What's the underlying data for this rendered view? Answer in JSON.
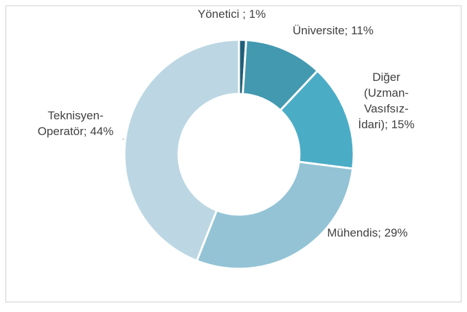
{
  "chart_data": {
    "type": "donut",
    "categories": [
      "Yönetici ;",
      "Üniversite;",
      "Diğer (Uzman-Vasıfsız-İdari);",
      "Mühendis;",
      "Teknisyen-Operatör;"
    ],
    "values": [
      1,
      11,
      15,
      29,
      44
    ],
    "value_labels": [
      "1%",
      "11%",
      "15%",
      "29%",
      "44%"
    ],
    "colors": [
      "#1f5f7a",
      "#4399b0",
      "#4bacc6",
      "#93c3d5",
      "#bcd7e3"
    ]
  }
}
